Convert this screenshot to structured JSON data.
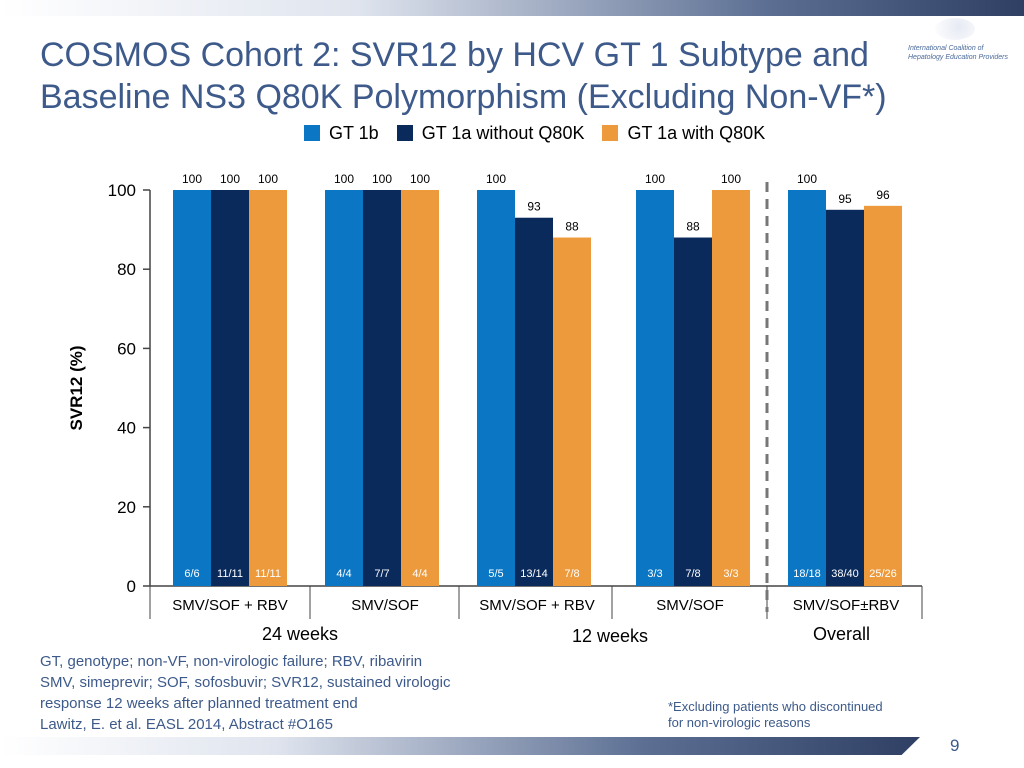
{
  "slide": {
    "title": "COSMOS Cohort 2: SVR12 by HCV GT 1 Subtype and Baseline NS3 Q80K Polymorphism (Excluding Non-VF*)",
    "logo_text": "International Coalition of Hepatology Education Providers",
    "page_number": "9",
    "footnote_lines": [
      "GT, genotype; non-VF, non-virologic failure; RBV, ribavirin",
      "SMV, simeprevir; SOF, sofosbuvir; SVR12, sustained virologic",
      "response 12 weeks after planned treatment end",
      "Lawitz, E. et al. EASL 2014, Abstract #O165"
    ],
    "exclusion_note_lines": [
      "*Excluding patients who discontinued",
      "for non-virologic reasons"
    ],
    "period_labels": [
      "24 weeks",
      "12 weeks",
      "Overall"
    ]
  },
  "chart_data": {
    "type": "bar",
    "ylabel": "SVR12 (%)",
    "ylim": [
      0,
      100
    ],
    "yticks": [
      0,
      20,
      40,
      60,
      80,
      100
    ],
    "categories": [
      "SMV/SOF + RBV",
      "SMV/SOF",
      "SMV/SOF + RBV",
      "SMV/SOF",
      "SMV/SOF±RBV"
    ],
    "series": [
      {
        "name": "GT 1b",
        "color": "#0b77c4",
        "values": [
          100,
          100,
          100,
          100,
          100
        ],
        "n_labels": [
          "6/6",
          "4/4",
          "5/5",
          "3/3",
          "18/18"
        ]
      },
      {
        "name": "GT 1a without Q80K",
        "color": "#0a2a5c",
        "values": [
          100,
          100,
          93,
          88,
          95
        ],
        "n_labels": [
          "11/11",
          "7/7",
          "13/14",
          "7/8",
          "38/40"
        ]
      },
      {
        "name": "GT 1a with Q80K",
        "color": "#ec9a3c",
        "values": [
          100,
          100,
          88,
          100,
          96
        ],
        "n_labels": [
          "11/11",
          "4/4",
          "7/8",
          "3/3",
          "25/26"
        ]
      }
    ],
    "separator": "dashed line between 12-week groups and Overall",
    "grid": false,
    "legend_position": "top"
  }
}
